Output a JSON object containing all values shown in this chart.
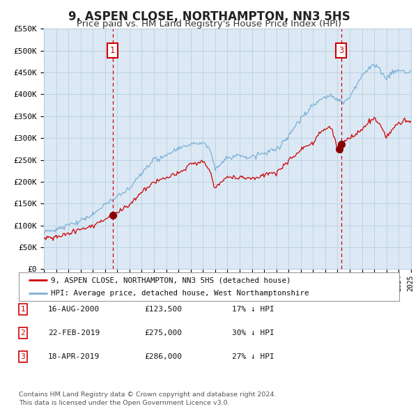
{
  "title": "9, ASPEN CLOSE, NORTHAMPTON, NN3 5HS",
  "subtitle": "Price paid vs. HM Land Registry's House Price Index (HPI)",
  "title_fontsize": 12,
  "subtitle_fontsize": 9.5,
  "bg_color": "#dce9f5",
  "fig_bg_color": "#ffffff",
  "grid_color": "#b8cfe0",
  "red_line_color": "#cc0000",
  "blue_line_color": "#7bafd4",
  "sale_marker_color": "#880000",
  "dashed_line_color": "#cc0000",
  "annotation_box_color": "#cc0000",
  "y_min": 0,
  "y_max": 550000,
  "y_ticks": [
    0,
    50000,
    100000,
    150000,
    200000,
    250000,
    300000,
    350000,
    400000,
    450000,
    500000,
    550000
  ],
  "y_tick_labels": [
    "£0",
    "£50K",
    "£100K",
    "£150K",
    "£200K",
    "£250K",
    "£300K",
    "£350K",
    "£400K",
    "£450K",
    "£500K",
    "£550K"
  ],
  "x_start_year": 1995,
  "x_end_year": 2025,
  "sale1_year": 2000.62,
  "sale1_price": 123500,
  "sale1_label": "1",
  "sale2_year": 2019.13,
  "sale2_price": 275000,
  "sale2_label": "2",
  "sale3_year": 2019.29,
  "sale3_price": 286000,
  "sale3_label": "3",
  "legend_line1": "9, ASPEN CLOSE, NORTHAMPTON, NN3 5HS (detached house)",
  "legend_line2": "HPI: Average price, detached house, West Northamptonshire",
  "table_rows": [
    [
      "1",
      "16-AUG-2000",
      "£123,500",
      "17% ↓ HPI"
    ],
    [
      "2",
      "22-FEB-2019",
      "£275,000",
      "30% ↓ HPI"
    ],
    [
      "3",
      "18-APR-2019",
      "£286,000",
      "27% ↓ HPI"
    ]
  ],
  "footnote1": "Contains HM Land Registry data © Crown copyright and database right 2024.",
  "footnote2": "This data is licensed under the Open Government Licence v3.0."
}
